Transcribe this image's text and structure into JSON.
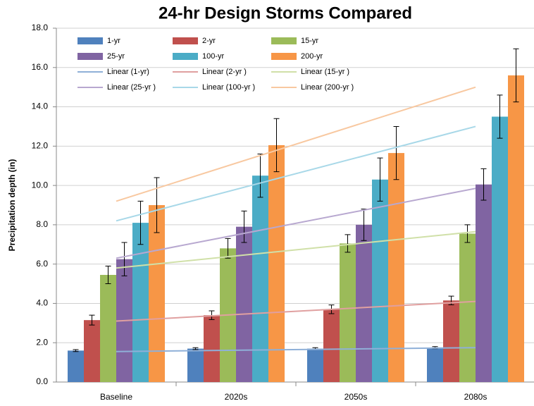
{
  "chart_data": {
    "type": "bar",
    "title": "24-hr Design Storms Compared",
    "y_label": "Precipitation depth (in)",
    "categories": [
      "Baseline",
      "2020s",
      "2050s",
      "2080s"
    ],
    "series": [
      {
        "name": "1-yr",
        "color": "#4f81bd",
        "values": [
          1.6,
          1.7,
          1.7,
          1.75
        ],
        "errors": [
          0.05,
          0.05,
          0.05,
          0.05
        ]
      },
      {
        "name": "2-yr",
        "color": "#c0504d",
        "values": [
          3.15,
          3.4,
          3.7,
          4.15
        ],
        "errors": [
          0.25,
          0.22,
          0.22,
          0.22
        ]
      },
      {
        "name": "15-yr",
        "color": "#9bbb59",
        "values": [
          5.45,
          6.8,
          7.05,
          7.55
        ],
        "errors": [
          0.45,
          0.5,
          0.45,
          0.45
        ]
      },
      {
        "name": "25-yr",
        "color": "#8064a2",
        "values": [
          6.25,
          7.9,
          8.0,
          10.05
        ],
        "errors": [
          0.85,
          0.8,
          0.8,
          0.8
        ]
      },
      {
        "name": "100-yr",
        "color": "#4bacc6",
        "values": [
          8.1,
          10.5,
          10.3,
          13.5
        ],
        "errors": [
          1.1,
          1.1,
          1.1,
          1.1
        ]
      },
      {
        "name": "200-yr",
        "color": "#f79646",
        "values": [
          9.0,
          12.05,
          11.65,
          15.6
        ],
        "errors": [
          1.4,
          1.35,
          1.35,
          1.35
        ]
      }
    ],
    "trendlines": [
      {
        "name": "Linear (1-yr)",
        "color": "#8fb0d8",
        "values": [
          1.55,
          1.75
        ]
      },
      {
        "name": "Linear (2-yr )",
        "color": "#e0a0a0",
        "values": [
          3.1,
          4.1
        ]
      },
      {
        "name": "Linear (15-yr )",
        "color": "#d0e0a8",
        "values": [
          5.8,
          7.65
        ]
      },
      {
        "name": "Linear (25-yr )",
        "color": "#b8a8d0",
        "values": [
          6.3,
          9.85
        ]
      },
      {
        "name": "Linear (100-yr )",
        "color": "#a8d8e8",
        "values": [
          8.2,
          13.0
        ]
      },
      {
        "name": "Linear (200-yr )",
        "color": "#f8c8a0",
        "values": [
          9.2,
          15.0
        ]
      }
    ],
    "ylim": [
      0,
      18
    ],
    "yticks": [
      {
        "value": 0,
        "label": "0.0"
      },
      {
        "value": 2,
        "label": "2.0"
      },
      {
        "value": 4,
        "label": "4.0"
      },
      {
        "value": 6,
        "label": "6.0"
      },
      {
        "value": 8,
        "label": "8.0"
      },
      {
        "value": 10,
        "label": "10.0"
      },
      {
        "value": 12,
        "label": "12.0"
      },
      {
        "value": 14,
        "label": "14.0"
      },
      {
        "value": 16,
        "label": "16.0"
      },
      {
        "value": 18,
        "label": "18.0"
      }
    ],
    "grid": true
  }
}
